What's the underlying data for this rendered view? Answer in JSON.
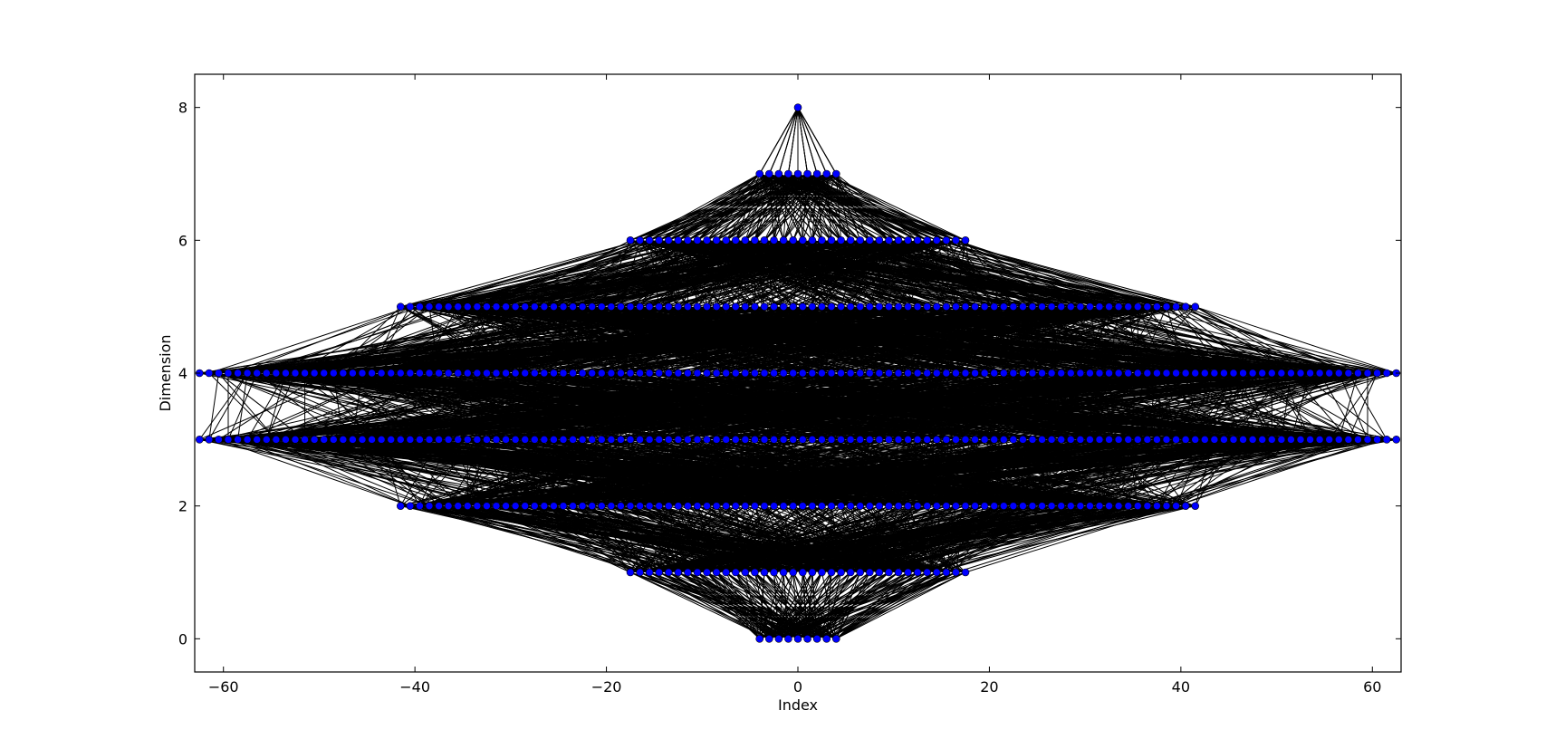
{
  "chart_data": {
    "type": "scatter",
    "title": "",
    "xlabel": "Index",
    "ylabel": "Dimension",
    "xlim": [
      -63,
      63
    ],
    "ylim": [
      -0.5,
      8.5
    ],
    "x_ticks": [
      -60,
      -40,
      -20,
      0,
      20,
      40,
      60
    ],
    "x_tick_labels": [
      "−60",
      "−40",
      "−20",
      "0",
      "20",
      "40",
      "60"
    ],
    "y_ticks": [
      0,
      2,
      4,
      6,
      8
    ],
    "y_tick_labels": [
      "0",
      "2",
      "4",
      "6",
      "8"
    ],
    "grid": false,
    "legend": "none",
    "description_levels": [
      {
        "dimension": 0,
        "x_min": -4,
        "x_max": 4,
        "count": 9
      },
      {
        "dimension": 1,
        "x_min": -17.5,
        "x_max": 17.5,
        "count": 36
      },
      {
        "dimension": 2,
        "x_min": -41.5,
        "x_max": 41.5,
        "count": 84
      },
      {
        "dimension": 3,
        "x_min": -62.5,
        "x_max": 62.5,
        "count": 126
      },
      {
        "dimension": 4,
        "x_min": -62.5,
        "x_max": 62.5,
        "count": 126
      },
      {
        "dimension": 5,
        "x_min": -41.5,
        "x_max": 41.5,
        "count": 84
      },
      {
        "dimension": 6,
        "x_min": -17.5,
        "x_max": 17.5,
        "count": 36
      },
      {
        "dimension": 7,
        "x_min": -4,
        "x_max": 4,
        "count": 9
      },
      {
        "dimension": 8,
        "x_min": 0,
        "x_max": 0,
        "count": 1
      }
    ],
    "edges_between_adjacent_dimensions": true,
    "colors": {
      "marker": "#0000ff",
      "edge": "#000000"
    }
  }
}
